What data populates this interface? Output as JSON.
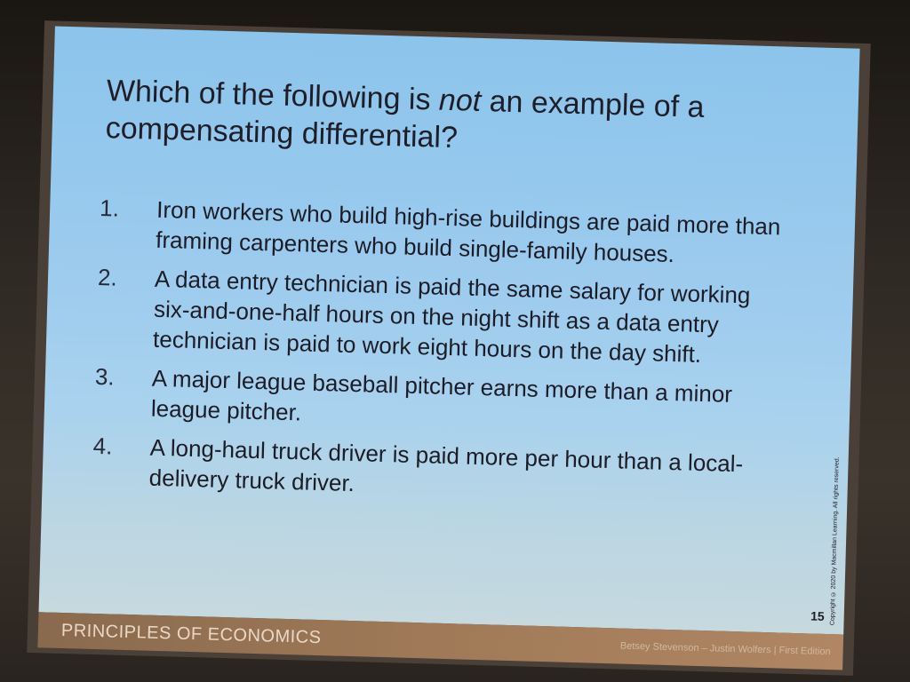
{
  "slide": {
    "title_before": "Which of the following is ",
    "title_emphasis": "not",
    "title_after": " an example of a compensating differential?",
    "options": [
      {
        "number": "1.",
        "text": "Iron workers who build high-rise buildings are paid more than framing carpenters who build single-family houses."
      },
      {
        "number": "2.",
        "text": "A data entry technician is paid the same salary for working six-and-one-half hours on the night shift as a data entry technician is paid to work eight hours on the day shift."
      },
      {
        "number": "3.",
        "text": "A major league baseball pitcher earns more than a minor league pitcher."
      },
      {
        "number": "4.",
        "text": "A long-haul truck driver is paid more per hour than a local-delivery truck driver."
      }
    ],
    "page_number": "15",
    "copyright": "Copyright © 2020 by Macmillan Learning. All rights reserved."
  },
  "footer": {
    "title": "PRINCIPLES OF ECONOMICS",
    "authors": "Betsey Stevenson – Justin Wolfers | First Edition"
  }
}
